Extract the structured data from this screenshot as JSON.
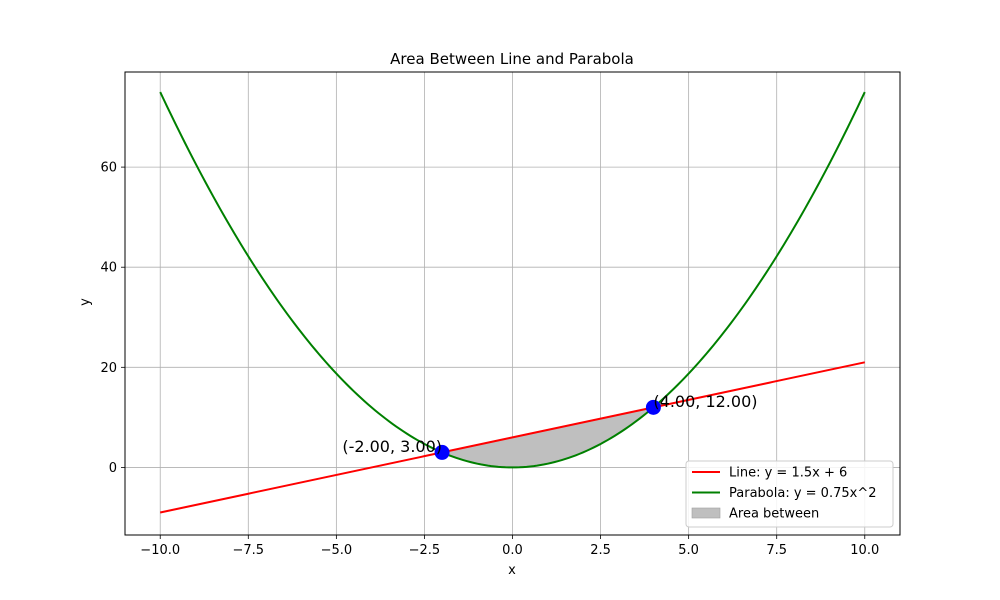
{
  "chart_data": {
    "type": "line",
    "title": "Area Between Line and Parabola",
    "xlabel": "x",
    "ylabel": "y",
    "xlim": [
      -11.0,
      11.0
    ],
    "ylim": [
      -13.5,
      79.0
    ],
    "xticks": [
      -10.0,
      -7.5,
      -5.0,
      -2.5,
      0.0,
      2.5,
      5.0,
      7.5,
      10.0
    ],
    "xtick_labels": [
      "−10.0",
      "−7.5",
      "−5.0",
      "−2.5",
      "0.0",
      "2.5",
      "5.0",
      "7.5",
      "10.0"
    ],
    "yticks": [
      0,
      20,
      40,
      60
    ],
    "ytick_labels": [
      "0",
      "20",
      "40",
      "60"
    ],
    "grid": true,
    "legend_position": "lower-right",
    "x_range": [
      -10,
      10
    ],
    "series": [
      {
        "name": "Line: y = 1.5x + 6",
        "kind": "line",
        "slope": 1.5,
        "intercept": 6,
        "color": "#ff0000"
      },
      {
        "name": "Parabola: y = 0.75x^2",
        "kind": "parabola",
        "a": 0.75,
        "color": "#008000"
      }
    ],
    "fill": {
      "name": "Area between",
      "x_from": -2,
      "x_to": 4,
      "color": "#bfbfbf"
    },
    "points": [
      {
        "x": -2,
        "y": 3,
        "label": "(-2.00, 3.00)",
        "label_side": "left",
        "color": "#0000ff"
      },
      {
        "x": 4,
        "y": 12,
        "label": "(4.00, 12.00)",
        "label_side": "right",
        "color": "#0000ff"
      }
    ]
  }
}
